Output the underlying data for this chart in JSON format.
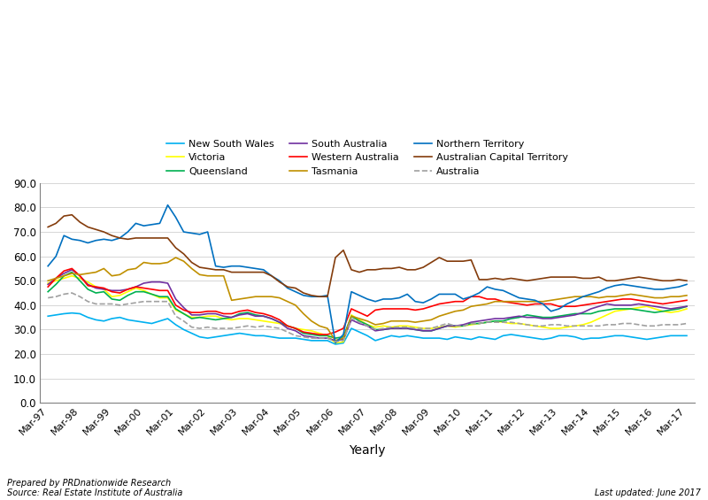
{
  "x_labels_display": [
    "Mar-97",
    "Mar-98",
    "Mar-99",
    "Mar-00",
    "Mar-01",
    "Mar-02",
    "Mar-03",
    "Mar-04",
    "Mar-05",
    "Mar-06",
    "Mar-07",
    "Mar-08",
    "Mar-09",
    "Mar-10",
    "Mar-11",
    "Mar-12",
    "Mar-13",
    "Mar-14",
    "Mar-15",
    "Mar-16",
    "Mar-17"
  ],
  "n_quarters": 81,
  "series": {
    "New South Wales": {
      "color": "#00B0F0",
      "style": "solid",
      "linewidth": 1.2,
      "values": [
        35.5,
        36.0,
        36.5,
        36.8,
        36.5,
        35.0,
        34.0,
        33.5,
        34.5,
        35.0,
        34.0,
        33.5,
        33.0,
        32.5,
        33.5,
        34.5,
        32.0,
        30.0,
        28.5,
        27.0,
        26.5,
        27.0,
        27.5,
        28.0,
        28.5,
        28.0,
        27.5,
        27.5,
        27.0,
        26.5,
        26.5,
        26.5,
        26.0,
        25.5,
        25.5,
        25.5,
        24.0,
        24.5,
        30.5,
        29.0,
        27.5,
        25.5,
        26.5,
        27.5,
        27.0,
        27.5,
        27.0,
        26.5,
        26.5,
        26.5,
        26.0,
        27.0,
        26.5,
        26.0,
        27.0,
        26.5,
        26.0,
        27.5,
        28.0,
        27.5,
        27.0,
        26.5,
        26.0,
        26.5,
        27.5,
        27.5,
        27.0,
        26.0,
        26.5,
        26.5,
        27.0,
        27.5,
        27.5,
        27.0,
        26.5,
        26.0,
        26.5,
        27.0,
        27.5,
        27.5,
        27.5
      ]
    },
    "Victoria": {
      "color": "#FFFF00",
      "style": "solid",
      "linewidth": 1.2,
      "values": [
        49.0,
        50.0,
        51.0,
        52.0,
        51.0,
        49.5,
        47.5,
        46.5,
        43.5,
        44.0,
        45.5,
        47.0,
        46.0,
        44.5,
        43.0,
        43.0,
        38.0,
        36.5,
        35.0,
        35.0,
        35.5,
        35.5,
        34.5,
        34.0,
        34.5,
        34.5,
        34.0,
        33.5,
        33.0,
        32.5,
        31.5,
        30.5,
        30.0,
        29.5,
        28.5,
        27.5,
        24.5,
        25.0,
        36.0,
        34.0,
        32.0,
        31.0,
        31.5,
        31.0,
        31.5,
        31.5,
        31.0,
        30.5,
        30.5,
        31.0,
        31.5,
        31.0,
        31.5,
        32.0,
        32.5,
        33.0,
        33.5,
        33.0,
        32.5,
        32.5,
        32.0,
        31.5,
        31.0,
        30.5,
        30.5,
        31.0,
        31.5,
        32.0,
        33.0,
        34.5,
        36.0,
        37.5,
        38.0,
        38.5,
        39.0,
        39.5,
        38.5,
        37.5,
        37.0,
        37.5,
        38.5
      ]
    },
    "Queensland": {
      "color": "#00B050",
      "style": "solid",
      "linewidth": 1.2,
      "values": [
        45.5,
        48.5,
        52.0,
        53.5,
        50.0,
        46.5,
        45.0,
        45.5,
        42.5,
        42.0,
        44.0,
        45.5,
        45.5,
        44.5,
        43.5,
        43.5,
        38.5,
        36.5,
        34.5,
        35.0,
        34.5,
        34.0,
        34.5,
        35.0,
        36.5,
        37.0,
        36.0,
        35.5,
        34.5,
        33.0,
        31.5,
        30.5,
        28.5,
        28.0,
        27.5,
        27.5,
        26.5,
        27.0,
        35.5,
        33.5,
        32.0,
        30.0,
        30.0,
        30.5,
        30.5,
        30.5,
        30.0,
        29.5,
        29.5,
        30.5,
        31.5,
        31.5,
        31.5,
        32.5,
        32.5,
        33.0,
        33.5,
        33.5,
        34.5,
        35.0,
        36.0,
        35.5,
        35.0,
        35.0,
        35.5,
        36.0,
        36.5,
        36.5,
        36.5,
        37.5,
        38.0,
        38.5,
        38.5,
        38.5,
        38.0,
        37.5,
        37.0,
        37.5,
        38.0,
        38.5,
        39.5
      ]
    },
    "South Australia": {
      "color": "#7030A0",
      "style": "solid",
      "linewidth": 1.2,
      "values": [
        48.5,
        51.0,
        53.0,
        54.5,
        52.0,
        48.5,
        47.0,
        46.5,
        46.0,
        46.0,
        46.5,
        47.5,
        49.0,
        49.5,
        49.5,
        49.0,
        42.5,
        39.0,
        36.0,
        36.0,
        36.5,
        36.5,
        35.5,
        35.0,
        36.0,
        36.5,
        35.5,
        35.5,
        34.5,
        33.0,
        30.5,
        29.5,
        27.5,
        27.0,
        26.5,
        26.5,
        25.5,
        26.0,
        34.0,
        32.5,
        31.5,
        29.5,
        30.0,
        30.5,
        30.5,
        30.5,
        30.0,
        29.5,
        29.5,
        30.5,
        31.5,
        31.5,
        32.0,
        33.0,
        33.5,
        34.0,
        34.5,
        34.5,
        35.0,
        35.5,
        35.0,
        35.0,
        34.5,
        34.5,
        35.0,
        35.5,
        36.0,
        37.0,
        38.5,
        39.5,
        40.5,
        40.0,
        40.0,
        40.0,
        40.5,
        40.0,
        39.5,
        39.0,
        38.5,
        39.0,
        39.5
      ]
    },
    "Western Australia": {
      "color": "#FF0000",
      "style": "solid",
      "linewidth": 1.2,
      "values": [
        47.5,
        51.0,
        54.0,
        55.0,
        52.0,
        48.0,
        47.5,
        47.0,
        45.5,
        45.0,
        46.5,
        47.5,
        47.0,
        46.5,
        46.0,
        46.0,
        40.0,
        38.0,
        37.0,
        37.0,
        37.5,
        37.5,
        36.5,
        36.5,
        37.5,
        38.0,
        37.0,
        36.5,
        35.5,
        34.0,
        31.5,
        30.5,
        29.0,
        28.5,
        28.0,
        28.0,
        29.0,
        30.5,
        38.5,
        37.0,
        35.5,
        38.0,
        38.5,
        38.5,
        38.5,
        38.5,
        38.0,
        38.5,
        39.5,
        40.5,
        41.0,
        41.5,
        41.5,
        43.5,
        43.5,
        42.5,
        42.5,
        41.5,
        41.0,
        40.5,
        40.0,
        40.5,
        40.5,
        40.5,
        39.5,
        39.5,
        39.5,
        40.0,
        40.5,
        41.0,
        41.5,
        42.0,
        42.5,
        42.5,
        42.0,
        41.5,
        41.0,
        40.5,
        41.0,
        41.5,
        42.0
      ]
    },
    "Tasmania": {
      "color": "#C09000",
      "style": "solid",
      "linewidth": 1.2,
      "values": [
        50.0,
        51.0,
        52.0,
        53.0,
        52.5,
        53.0,
        53.5,
        55.0,
        52.0,
        52.5,
        54.5,
        55.0,
        57.5,
        57.0,
        57.0,
        57.5,
        59.5,
        58.0,
        55.0,
        52.5,
        52.0,
        52.0,
        52.0,
        42.0,
        42.5,
        43.0,
        43.5,
        43.5,
        43.5,
        43.0,
        41.5,
        40.0,
        36.5,
        33.5,
        31.5,
        30.5,
        25.5,
        26.5,
        35.5,
        34.5,
        33.5,
        32.0,
        32.5,
        33.5,
        33.5,
        33.5,
        33.0,
        33.5,
        34.0,
        35.5,
        36.5,
        37.5,
        38.0,
        39.5,
        40.0,
        40.5,
        41.5,
        41.5,
        41.5,
        41.5,
        41.5,
        41.5,
        41.5,
        42.0,
        42.5,
        43.0,
        43.5,
        43.5,
        43.5,
        43.0,
        43.5,
        43.5,
        44.0,
        44.5,
        44.0,
        43.5,
        43.0,
        43.0,
        43.5,
        43.5,
        44.0
      ]
    },
    "Northern Territory": {
      "color": "#0070C0",
      "style": "solid",
      "linewidth": 1.2,
      "values": [
        56.0,
        60.0,
        68.5,
        67.0,
        66.5,
        65.5,
        66.5,
        67.0,
        66.5,
        67.5,
        70.0,
        73.5,
        72.5,
        73.0,
        73.5,
        81.0,
        76.0,
        70.0,
        69.5,
        69.0,
        70.0,
        56.0,
        55.5,
        56.0,
        56.0,
        55.5,
        55.0,
        54.5,
        52.0,
        50.0,
        47.0,
        45.5,
        44.0,
        43.5,
        43.5,
        44.0,
        24.5,
        28.0,
        45.5,
        44.0,
        42.5,
        41.5,
        42.5,
        42.5,
        43.0,
        44.5,
        41.5,
        41.0,
        42.5,
        44.5,
        44.5,
        44.5,
        42.5,
        43.5,
        45.0,
        47.5,
        46.5,
        46.0,
        44.5,
        43.0,
        42.5,
        42.0,
        40.5,
        37.5,
        38.5,
        40.5,
        42.0,
        43.5,
        44.5,
        45.5,
        47.0,
        48.0,
        48.5,
        48.0,
        47.5,
        47.0,
        46.5,
        46.5,
        47.0,
        47.5,
        48.5
      ]
    },
    "Australian Capital Territory": {
      "color": "#843C0C",
      "style": "solid",
      "linewidth": 1.2,
      "values": [
        72.0,
        73.5,
        76.5,
        77.0,
        74.0,
        72.0,
        71.0,
        70.0,
        68.5,
        67.5,
        67.0,
        67.5,
        67.5,
        67.5,
        67.5,
        67.5,
        63.5,
        61.0,
        57.5,
        55.5,
        55.0,
        54.5,
        54.5,
        53.5,
        53.5,
        53.5,
        53.5,
        53.5,
        52.0,
        49.5,
        47.5,
        47.0,
        45.0,
        44.0,
        43.5,
        43.5,
        59.5,
        62.5,
        54.5,
        53.5,
        54.5,
        54.5,
        55.0,
        55.0,
        55.5,
        54.5,
        54.5,
        55.5,
        57.5,
        59.5,
        58.0,
        58.0,
        58.0,
        58.5,
        50.5,
        50.5,
        51.0,
        50.5,
        51.0,
        50.5,
        50.0,
        50.5,
        51.0,
        51.5,
        51.5,
        51.5,
        51.5,
        51.0,
        51.0,
        51.5,
        50.0,
        50.0,
        50.5,
        51.0,
        51.5,
        51.0,
        50.5,
        50.0,
        50.0,
        50.5,
        50.0
      ]
    },
    "Australia": {
      "color": "#A0A0A0",
      "style": "dashed",
      "linewidth": 1.2,
      "values": [
        43.0,
        43.5,
        44.5,
        45.0,
        43.5,
        41.5,
        40.5,
        40.5,
        40.5,
        40.0,
        40.5,
        41.0,
        41.5,
        41.5,
        41.5,
        41.5,
        35.5,
        33.5,
        31.0,
        30.5,
        31.0,
        30.5,
        30.5,
        30.5,
        31.0,
        31.5,
        31.0,
        31.5,
        31.0,
        30.5,
        29.0,
        27.5,
        27.0,
        26.5,
        26.5,
        26.5,
        25.0,
        25.5,
        34.5,
        33.0,
        31.5,
        30.0,
        30.5,
        31.0,
        31.0,
        31.0,
        30.5,
        30.5,
        30.5,
        31.5,
        32.5,
        31.5,
        31.5,
        32.5,
        32.5,
        33.0,
        33.0,
        33.0,
        33.0,
        32.5,
        32.0,
        31.5,
        31.5,
        32.0,
        32.0,
        31.5,
        31.5,
        31.5,
        31.5,
        31.5,
        32.0,
        32.0,
        32.5,
        32.5,
        32.0,
        31.5,
        31.5,
        32.0,
        32.0,
        32.0,
        32.5
      ]
    }
  },
  "ylim": [
    0.0,
    90.0
  ],
  "yticks": [
    0.0,
    10.0,
    20.0,
    30.0,
    40.0,
    50.0,
    60.0,
    70.0,
    80.0,
    90.0
  ],
  "xtick_positions": [
    0,
    4,
    8,
    12,
    16,
    20,
    24,
    28,
    32,
    36,
    40,
    44,
    48,
    52,
    56,
    60,
    64,
    68,
    72,
    76,
    80
  ],
  "xlabel": "Yearly",
  "bottom_left": "Prepared by PRDnationwide Research\nSource: Real Estate Institute of Australia",
  "bottom_right": "Last updated: June 2017",
  "legend_order": [
    "New South Wales",
    "Victoria",
    "Queensland",
    "South Australia",
    "Western Australia",
    "Tasmania",
    "Northern Territory",
    "Australian Capital Territory",
    "Australia"
  ]
}
